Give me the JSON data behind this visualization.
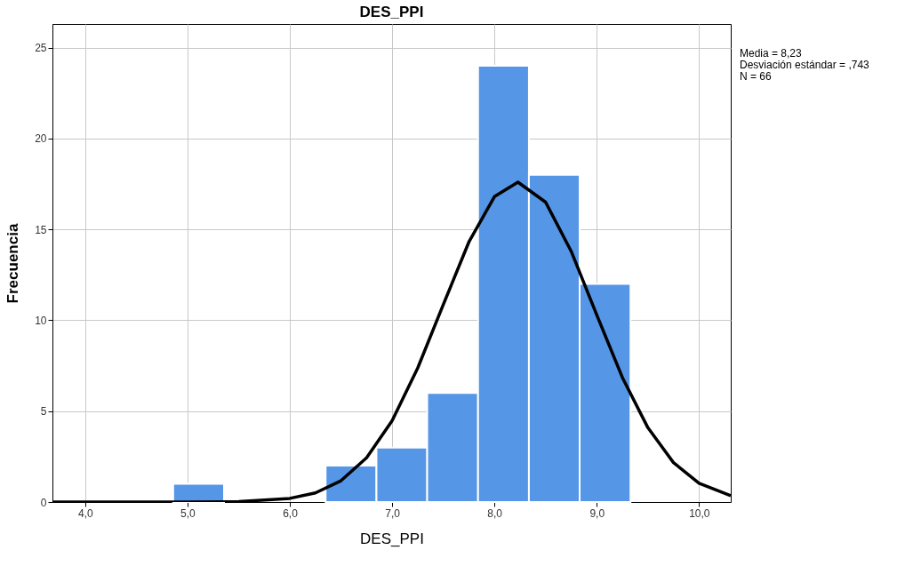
{
  "chart_data": {
    "type": "histogram",
    "title": "DES_PPI",
    "xlabel": "DES_PPI",
    "ylabel": "Frecuencia",
    "bins": [
      4.86,
      5.357,
      5.853,
      6.35,
      6.847,
      7.343,
      7.84,
      8.337,
      8.833,
      9.33
    ],
    "values": [
      1,
      0,
      0,
      2,
      3,
      6,
      24,
      18,
      12
    ],
    "color": "#5596e6",
    "series": [
      {
        "type": "line",
        "color": "#000000",
        "x": [
          3.68,
          5.0,
          5.5,
          6.0,
          6.25,
          6.5,
          6.75,
          7.0,
          7.25,
          7.5,
          7.75,
          8.0,
          8.23,
          8.5,
          8.75,
          9.0,
          9.25,
          9.5,
          9.75,
          10.0,
          10.31
        ],
        "values": [
          0,
          0,
          0.02,
          0.2,
          0.5,
          1.17,
          2.43,
          4.47,
          7.37,
          10.86,
          14.3,
          16.8,
          17.6,
          16.5,
          13.8,
          10.3,
          6.86,
          4.09,
          2.17,
          1.03,
          0.35
        ]
      }
    ],
    "xlim": [
      3.68,
      10.31
    ],
    "ylim": [
      0,
      26.3
    ],
    "xticks": [
      {
        "value": 4,
        "label": "4,0"
      },
      {
        "value": 5,
        "label": "5,0"
      },
      {
        "value": 6,
        "label": "6,0"
      },
      {
        "value": 7,
        "label": "7,0"
      },
      {
        "value": 8,
        "label": "8,0"
      },
      {
        "value": 9,
        "label": "9,0"
      },
      {
        "value": 10,
        "label": "10,0"
      }
    ],
    "yticks": [
      0,
      5,
      10,
      15,
      20,
      25
    ],
    "grid": true,
    "annotations": [
      "Media = 8,23",
      "Desviación estándar = ,743",
      "N = 66"
    ]
  }
}
